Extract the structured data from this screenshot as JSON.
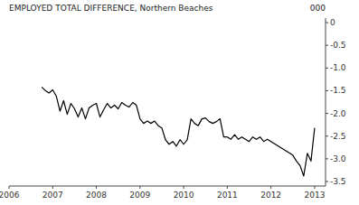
{
  "chart_data": {
    "type": "line",
    "title": "EMPLOYED TOTAL DIFFERENCE, Northern Beaches",
    "ylabel": "000",
    "x": [
      2006.75,
      2006.833,
      2006.917,
      2007.0,
      2007.083,
      2007.167,
      2007.25,
      2007.333,
      2007.417,
      2007.5,
      2007.583,
      2007.667,
      2007.75,
      2007.833,
      2007.917,
      2008.0,
      2008.083,
      2008.167,
      2008.25,
      2008.333,
      2008.417,
      2008.5,
      2008.583,
      2008.667,
      2008.75,
      2008.833,
      2008.917,
      2009.0,
      2009.083,
      2009.167,
      2009.25,
      2009.333,
      2009.417,
      2009.5,
      2009.583,
      2009.667,
      2009.75,
      2009.833,
      2009.917,
      2010.0,
      2010.083,
      2010.167,
      2010.25,
      2010.333,
      2010.417,
      2010.5,
      2010.583,
      2010.667,
      2010.75,
      2010.833,
      2010.917,
      2011.0,
      2011.083,
      2011.167,
      2011.25,
      2011.333,
      2011.417,
      2011.5,
      2011.583,
      2011.667,
      2011.75,
      2011.833,
      2011.917,
      2012.0,
      2012.083,
      2012.167,
      2012.25,
      2012.333,
      2012.417,
      2012.5,
      2012.583,
      2012.667,
      2012.75,
      2012.833,
      2012.917,
      2013.0
    ],
    "values": [
      -1.42,
      -1.5,
      -1.55,
      -1.48,
      -1.62,
      -1.95,
      -1.72,
      -2.02,
      -1.78,
      -1.9,
      -2.08,
      -1.88,
      -2.12,
      -1.88,
      -1.82,
      -1.78,
      -2.08,
      -1.92,
      -1.78,
      -1.88,
      -1.82,
      -1.9,
      -1.76,
      -1.82,
      -1.86,
      -1.76,
      -1.82,
      -2.12,
      -2.22,
      -2.17,
      -2.22,
      -2.17,
      -2.27,
      -2.32,
      -2.58,
      -2.68,
      -2.62,
      -2.72,
      -2.58,
      -2.68,
      -2.58,
      -2.12,
      -2.22,
      -2.27,
      -2.12,
      -2.1,
      -2.18,
      -2.22,
      -2.18,
      -2.12,
      -2.52,
      -2.52,
      -2.57,
      -2.47,
      -2.57,
      -2.52,
      -2.57,
      -2.62,
      -2.52,
      -2.57,
      -2.52,
      -2.62,
      -2.57,
      -2.62,
      -2.67,
      -2.72,
      -2.77,
      -2.82,
      -2.87,
      -2.92,
      -3.05,
      -3.15,
      -3.38,
      -2.88,
      -3.05,
      -2.32
    ],
    "color": "#000000",
    "xlim": [
      2006.0,
      2013.25
    ],
    "ylim": [
      -3.6,
      0.1
    ],
    "xticks": [
      2006,
      2007,
      2008,
      2009,
      2010,
      2011,
      2012,
      2013
    ],
    "yticks": [
      0,
      -0.5,
      {
        "value": -1,
        "label": "-1.0"
      },
      -1.5,
      {
        "value": -2,
        "label": "-2.0"
      },
      -2.5,
      {
        "value": -3,
        "label": "-3.0"
      },
      -3.5
    ],
    "grid": false
  }
}
